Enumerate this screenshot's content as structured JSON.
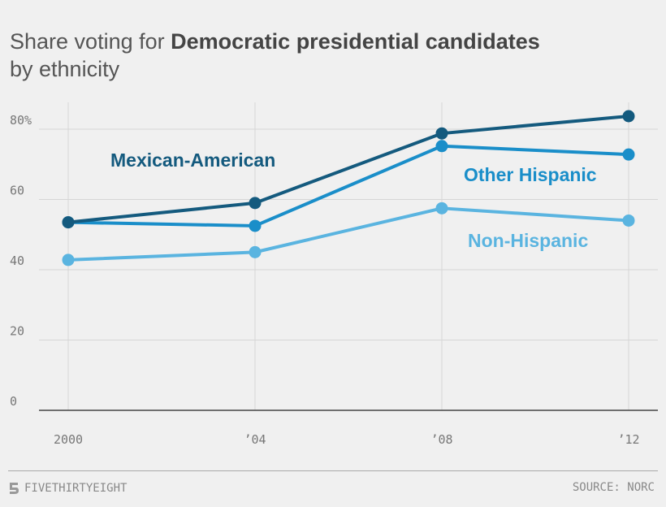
{
  "header": {
    "title_prefix": "Share voting for ",
    "title_bold": "Democratic presidential candidates",
    "title_line2": "by ethnicity"
  },
  "footer": {
    "brand": "FIVETHIRTYEIGHT",
    "source": "SOURCE: NORC"
  },
  "chart_data": {
    "type": "line",
    "title": "Share voting for Democratic presidential candidates by ethnicity",
    "xlabel": "",
    "ylabel": "",
    "x": [
      2000,
      2004,
      2008,
      2012
    ],
    "x_tick_labels": [
      "2000",
      "’04",
      "’08",
      "’12"
    ],
    "y_ticks": [
      0,
      20,
      40,
      60,
      80
    ],
    "y_tick_labels": [
      "0",
      "20",
      "40",
      "60",
      "80%"
    ],
    "ylim": [
      0,
      85
    ],
    "grid": true,
    "series": [
      {
        "name": "Mexican-American",
        "color": "#145a7e",
        "values": [
          53.5,
          59,
          78.8,
          83.7
        ]
      },
      {
        "name": "Other Hispanic",
        "color": "#1a8ec9",
        "values": [
          53.5,
          52.5,
          75.2,
          72.8
        ]
      },
      {
        "name": "Non-Hispanic",
        "color": "#5ab4e0",
        "values": [
          42.8,
          45,
          57.5,
          54
        ]
      }
    ]
  }
}
